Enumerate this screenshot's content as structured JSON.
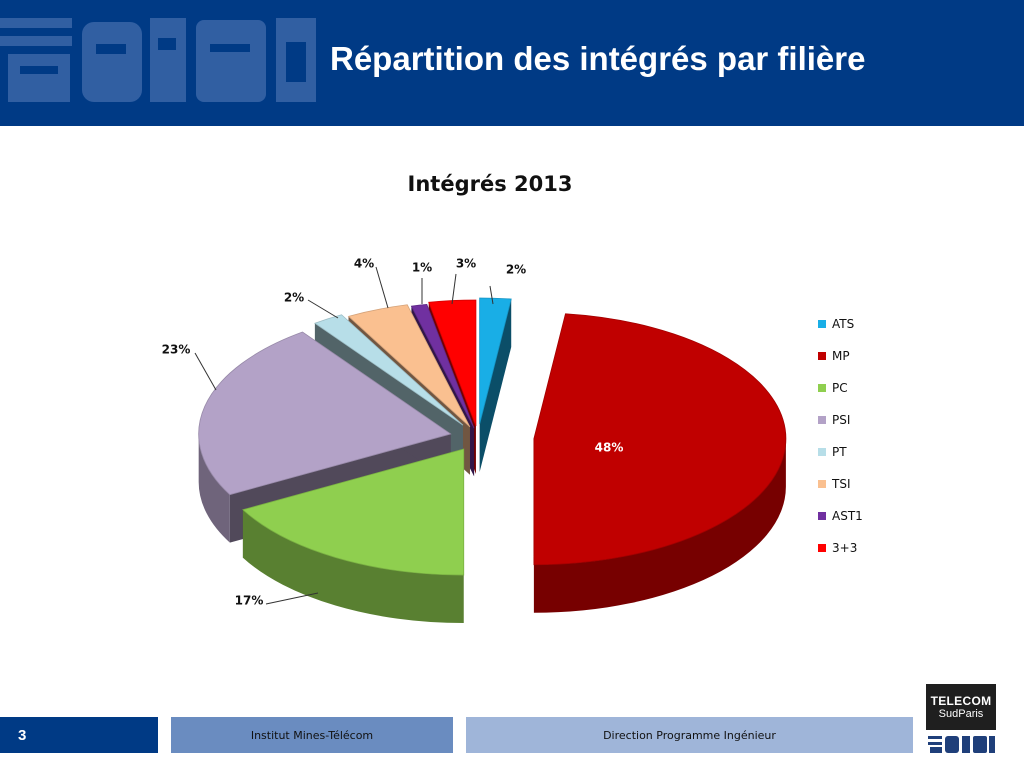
{
  "header": {
    "title": "Répartition des intégrés par filière"
  },
  "chart_data": {
    "type": "pie",
    "title": "Intégrés 2013",
    "categories": [
      "ATS",
      "MP",
      "PC",
      "PSI",
      "PT",
      "TSI",
      "AST1",
      "3+3"
    ],
    "values": [
      2,
      48,
      17,
      23,
      2,
      4,
      1,
      3
    ],
    "labels": [
      "2%",
      "48%",
      "17%",
      "23%",
      "2%",
      "4%",
      "1%",
      "3%"
    ],
    "colors": [
      "#19aee6",
      "#c00000",
      "#8fcf4f",
      "#b3a2c7",
      "#b7dee8",
      "#fac090",
      "#7030a0",
      "#ff0000"
    ],
    "style": "3D exploded",
    "legend_position": "right"
  },
  "footer": {
    "page_number": "3",
    "institution": "Institut Mines-Télécom",
    "department": "Direction Programme Ingénieur"
  },
  "brand": {
    "line1": "TELECOM",
    "line2": "SudParis"
  }
}
